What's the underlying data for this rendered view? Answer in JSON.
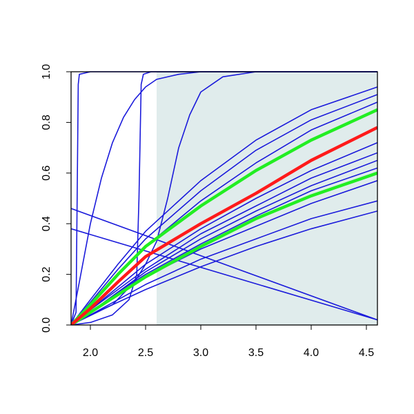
{
  "chart_data": {
    "type": "line",
    "xlim": [
      1.825,
      4.6
    ],
    "ylim": [
      0,
      1
    ],
    "xticks": [
      {
        "value": 2,
        "label": "2.0"
      },
      2.5,
      {
        "value": 3,
        "label": "3.0"
      },
      3.5,
      {
        "value": 4,
        "label": "4.0"
      },
      4.5
    ],
    "yticks": [
      {
        "value": 0,
        "label": "0.0"
      },
      0.2,
      0.4,
      0.6,
      0.8,
      {
        "value": 1,
        "label": "1.0"
      }
    ],
    "shade": {
      "xlim": [
        2.6,
        4.6
      ],
      "ylim": [
        0,
        1
      ],
      "color": "#e0ecec"
    },
    "series": [
      {
        "color": "#1a1adb",
        "x": [
          1.825,
          2.0,
          2.25,
          2.5,
          3.0,
          3.5,
          4.0,
          4.6
        ],
        "values": [
          0,
          0.1,
          0.24,
          0.37,
          0.57,
          0.73,
          0.85,
          0.94
        ]
      },
      {
        "color": "#1a1adb",
        "x": [
          1.825,
          2.0,
          2.25,
          2.5,
          3.0,
          3.5,
          4.0,
          4.6
        ],
        "values": [
          0,
          0.09,
          0.22,
          0.34,
          0.53,
          0.69,
          0.81,
          0.91
        ]
      },
      {
        "color": "#1a1adb",
        "x": [
          1.825,
          2.0,
          2.25,
          2.5,
          3.0,
          3.5,
          4.0,
          4.6
        ],
        "values": [
          0,
          0.08,
          0.2,
          0.31,
          0.49,
          0.64,
          0.77,
          0.88
        ]
      },
      {
        "color": "#1a1adb",
        "x": [
          1.825,
          2.0,
          2.25,
          2.5,
          3.0,
          3.5,
          4.0,
          4.6
        ],
        "values": [
          0,
          0.06,
          0.15,
          0.24,
          0.38,
          0.5,
          0.61,
          0.72
        ]
      },
      {
        "color": "#1a1adb",
        "x": [
          1.825,
          2.0,
          2.25,
          2.5,
          3.0,
          3.5,
          4.0,
          4.6
        ],
        "values": [
          0,
          0.06,
          0.14,
          0.22,
          0.36,
          0.47,
          0.58,
          0.68
        ]
      },
      {
        "color": "#1a1adb",
        "x": [
          1.825,
          2.0,
          2.25,
          2.5,
          3.0,
          3.5,
          4.0,
          4.6
        ],
        "values": [
          0,
          0.05,
          0.13,
          0.21,
          0.34,
          0.45,
          0.55,
          0.65
        ]
      },
      {
        "color": "#1a1adb",
        "x": [
          1.825,
          2.0,
          2.25,
          2.5,
          3.0,
          3.5,
          4.0,
          4.6
        ],
        "values": [
          0,
          0.05,
          0.13,
          0.2,
          0.32,
          0.43,
          0.53,
          0.62
        ]
      },
      {
        "color": "#1a1adb",
        "x": [
          1.825,
          2.0,
          2.25,
          2.5,
          3.0,
          3.5,
          4.0,
          4.6
        ],
        "values": [
          0,
          0.05,
          0.12,
          0.19,
          0.3,
          0.39,
          0.48,
          0.57
        ]
      },
      {
        "color": "#1a1adb",
        "x": [
          1.825,
          2.0,
          2.25,
          2.5,
          3.0,
          3.5,
          4.0,
          4.6
        ],
        "values": [
          0,
          0.04,
          0.1,
          0.16,
          0.26,
          0.34,
          0.42,
          0.49
        ]
      },
      {
        "color": "#1a1adb",
        "x": [
          1.825,
          2.0,
          2.25,
          2.5,
          3.0,
          3.5,
          4.0,
          4.6
        ],
        "values": [
          0,
          0.04,
          0.09,
          0.14,
          0.23,
          0.31,
          0.38,
          0.45
        ]
      },
      {
        "color": "#1a1adb",
        "x": [
          1.825,
          4.6
        ],
        "values": [
          0.46,
          0.02
        ]
      },
      {
        "color": "#1a1adb",
        "x": [
          1.825,
          4.6
        ],
        "values": [
          0.38,
          0.02
        ]
      },
      {
        "color": "#1a1adb",
        "x": [
          1.825,
          1.87,
          1.88,
          1.89,
          1.9,
          2.0,
          4.6
        ],
        "values": [
          0,
          0.05,
          0.5,
          0.95,
          0.99,
          1,
          1
        ]
      },
      {
        "color": "#1a1adb",
        "x": [
          1.825,
          1.9,
          2.0,
          2.1,
          2.2,
          2.3,
          2.4,
          2.5,
          2.6,
          2.8,
          3.0,
          4.6
        ],
        "values": [
          0,
          0.17,
          0.4,
          0.58,
          0.72,
          0.82,
          0.89,
          0.94,
          0.97,
          0.99,
          1,
          1
        ]
      },
      {
        "color": "#1a1adb",
        "x": [
          1.825,
          2.0,
          2.2,
          2.35,
          2.42,
          2.44,
          2.46,
          2.48,
          2.55,
          4.6
        ],
        "values": [
          0,
          0.01,
          0.04,
          0.1,
          0.2,
          0.5,
          0.95,
          0.99,
          1,
          1
        ]
      },
      {
        "color": "#1a1adb",
        "x": [
          1.825,
          2.2,
          2.4,
          2.5,
          2.6,
          2.7,
          2.8,
          2.9,
          3.0,
          3.2,
          3.5,
          4.6
        ],
        "values": [
          0,
          0.08,
          0.17,
          0.24,
          0.33,
          0.5,
          0.7,
          0.83,
          0.92,
          0.98,
          1,
          1
        ]
      },
      {
        "color": "#22ee22",
        "x": [
          1.825,
          2.0,
          2.25,
          2.5,
          3.0,
          3.5,
          4.0,
          4.6
        ],
        "values": [
          0,
          0.08,
          0.2,
          0.31,
          0.47,
          0.61,
          0.73,
          0.85
        ]
      },
      {
        "color": "#22ee22",
        "x": [
          1.825,
          2.0,
          2.25,
          2.5,
          3.0,
          3.5,
          4.0,
          4.6
        ],
        "values": [
          0,
          0.05,
          0.12,
          0.19,
          0.31,
          0.42,
          0.51,
          0.6
        ]
      },
      {
        "color": "#ff1a1a",
        "x": [
          1.825,
          2.0,
          2.25,
          2.5,
          3.0,
          3.5,
          4.0,
          4.6
        ],
        "values": [
          0,
          0.065,
          0.17,
          0.27,
          0.4,
          0.52,
          0.65,
          0.78
        ]
      }
    ]
  }
}
